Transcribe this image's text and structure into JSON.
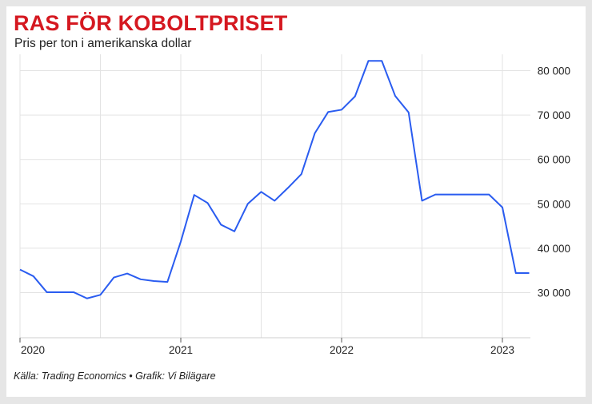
{
  "header": {
    "title": "RAS FÖR KOBOLTPRISET",
    "subtitle": "Pris per ton i amerikanska dollar"
  },
  "footer": {
    "source": "Källa: Trading Economics • Grafik: Vi Bilägare"
  },
  "colors": {
    "title": "#d51820",
    "line": "#2a5cf0",
    "grid": "#e3e3e3",
    "background": "#e6e6e6"
  },
  "chart_data": {
    "type": "line",
    "title": "RAS FÖR KOBOLTPRISET",
    "subtitle": "Pris per ton i amerikanska dollar",
    "xlabel": "",
    "ylabel": "",
    "x_tick_labels": [
      "2020",
      "2021",
      "2022",
      "2023"
    ],
    "y_tick_labels": [
      "30 000",
      "40 000",
      "50 000",
      "60 000",
      "70 000",
      "80 000"
    ],
    "y_ticks": [
      30000,
      40000,
      50000,
      60000,
      70000,
      80000
    ],
    "xlim": [
      "2020-01",
      "2023-03"
    ],
    "ylim": [
      20000,
      85000
    ],
    "grid": true,
    "y_axis_position": "right",
    "legend": "none",
    "series": [
      {
        "x": [
          "2020-01",
          "2020-02",
          "2020-03",
          "2020-04",
          "2020-05",
          "2020-06",
          "2020-07",
          "2020-08",
          "2020-09",
          "2020-10",
          "2020-11",
          "2020-12",
          "2021-01",
          "2021-02",
          "2021-03",
          "2021-04",
          "2021-05",
          "2021-06",
          "2021-07",
          "2021-08",
          "2021-09",
          "2021-10",
          "2021-11",
          "2021-12",
          "2022-01",
          "2022-02",
          "2022-03",
          "2022-04",
          "2022-05",
          "2022-06",
          "2022-07",
          "2022-08",
          "2022-09",
          "2022-10",
          "2022-11",
          "2022-12",
          "2023-01",
          "2023-02",
          "2023-03"
        ],
        "values": [
          35200,
          33700,
          30100,
          30100,
          30100,
          28700,
          29500,
          33400,
          34300,
          33000,
          32600,
          32400,
          41500,
          52000,
          50200,
          45300,
          43800,
          50000,
          52700,
          50700,
          53600,
          56700,
          65900,
          70700,
          71200,
          74200,
          82200,
          82200,
          74300,
          70600,
          50700,
          52100,
          52100,
          52100,
          52100,
          52100,
          49200,
          34400,
          34400
        ]
      }
    ]
  }
}
